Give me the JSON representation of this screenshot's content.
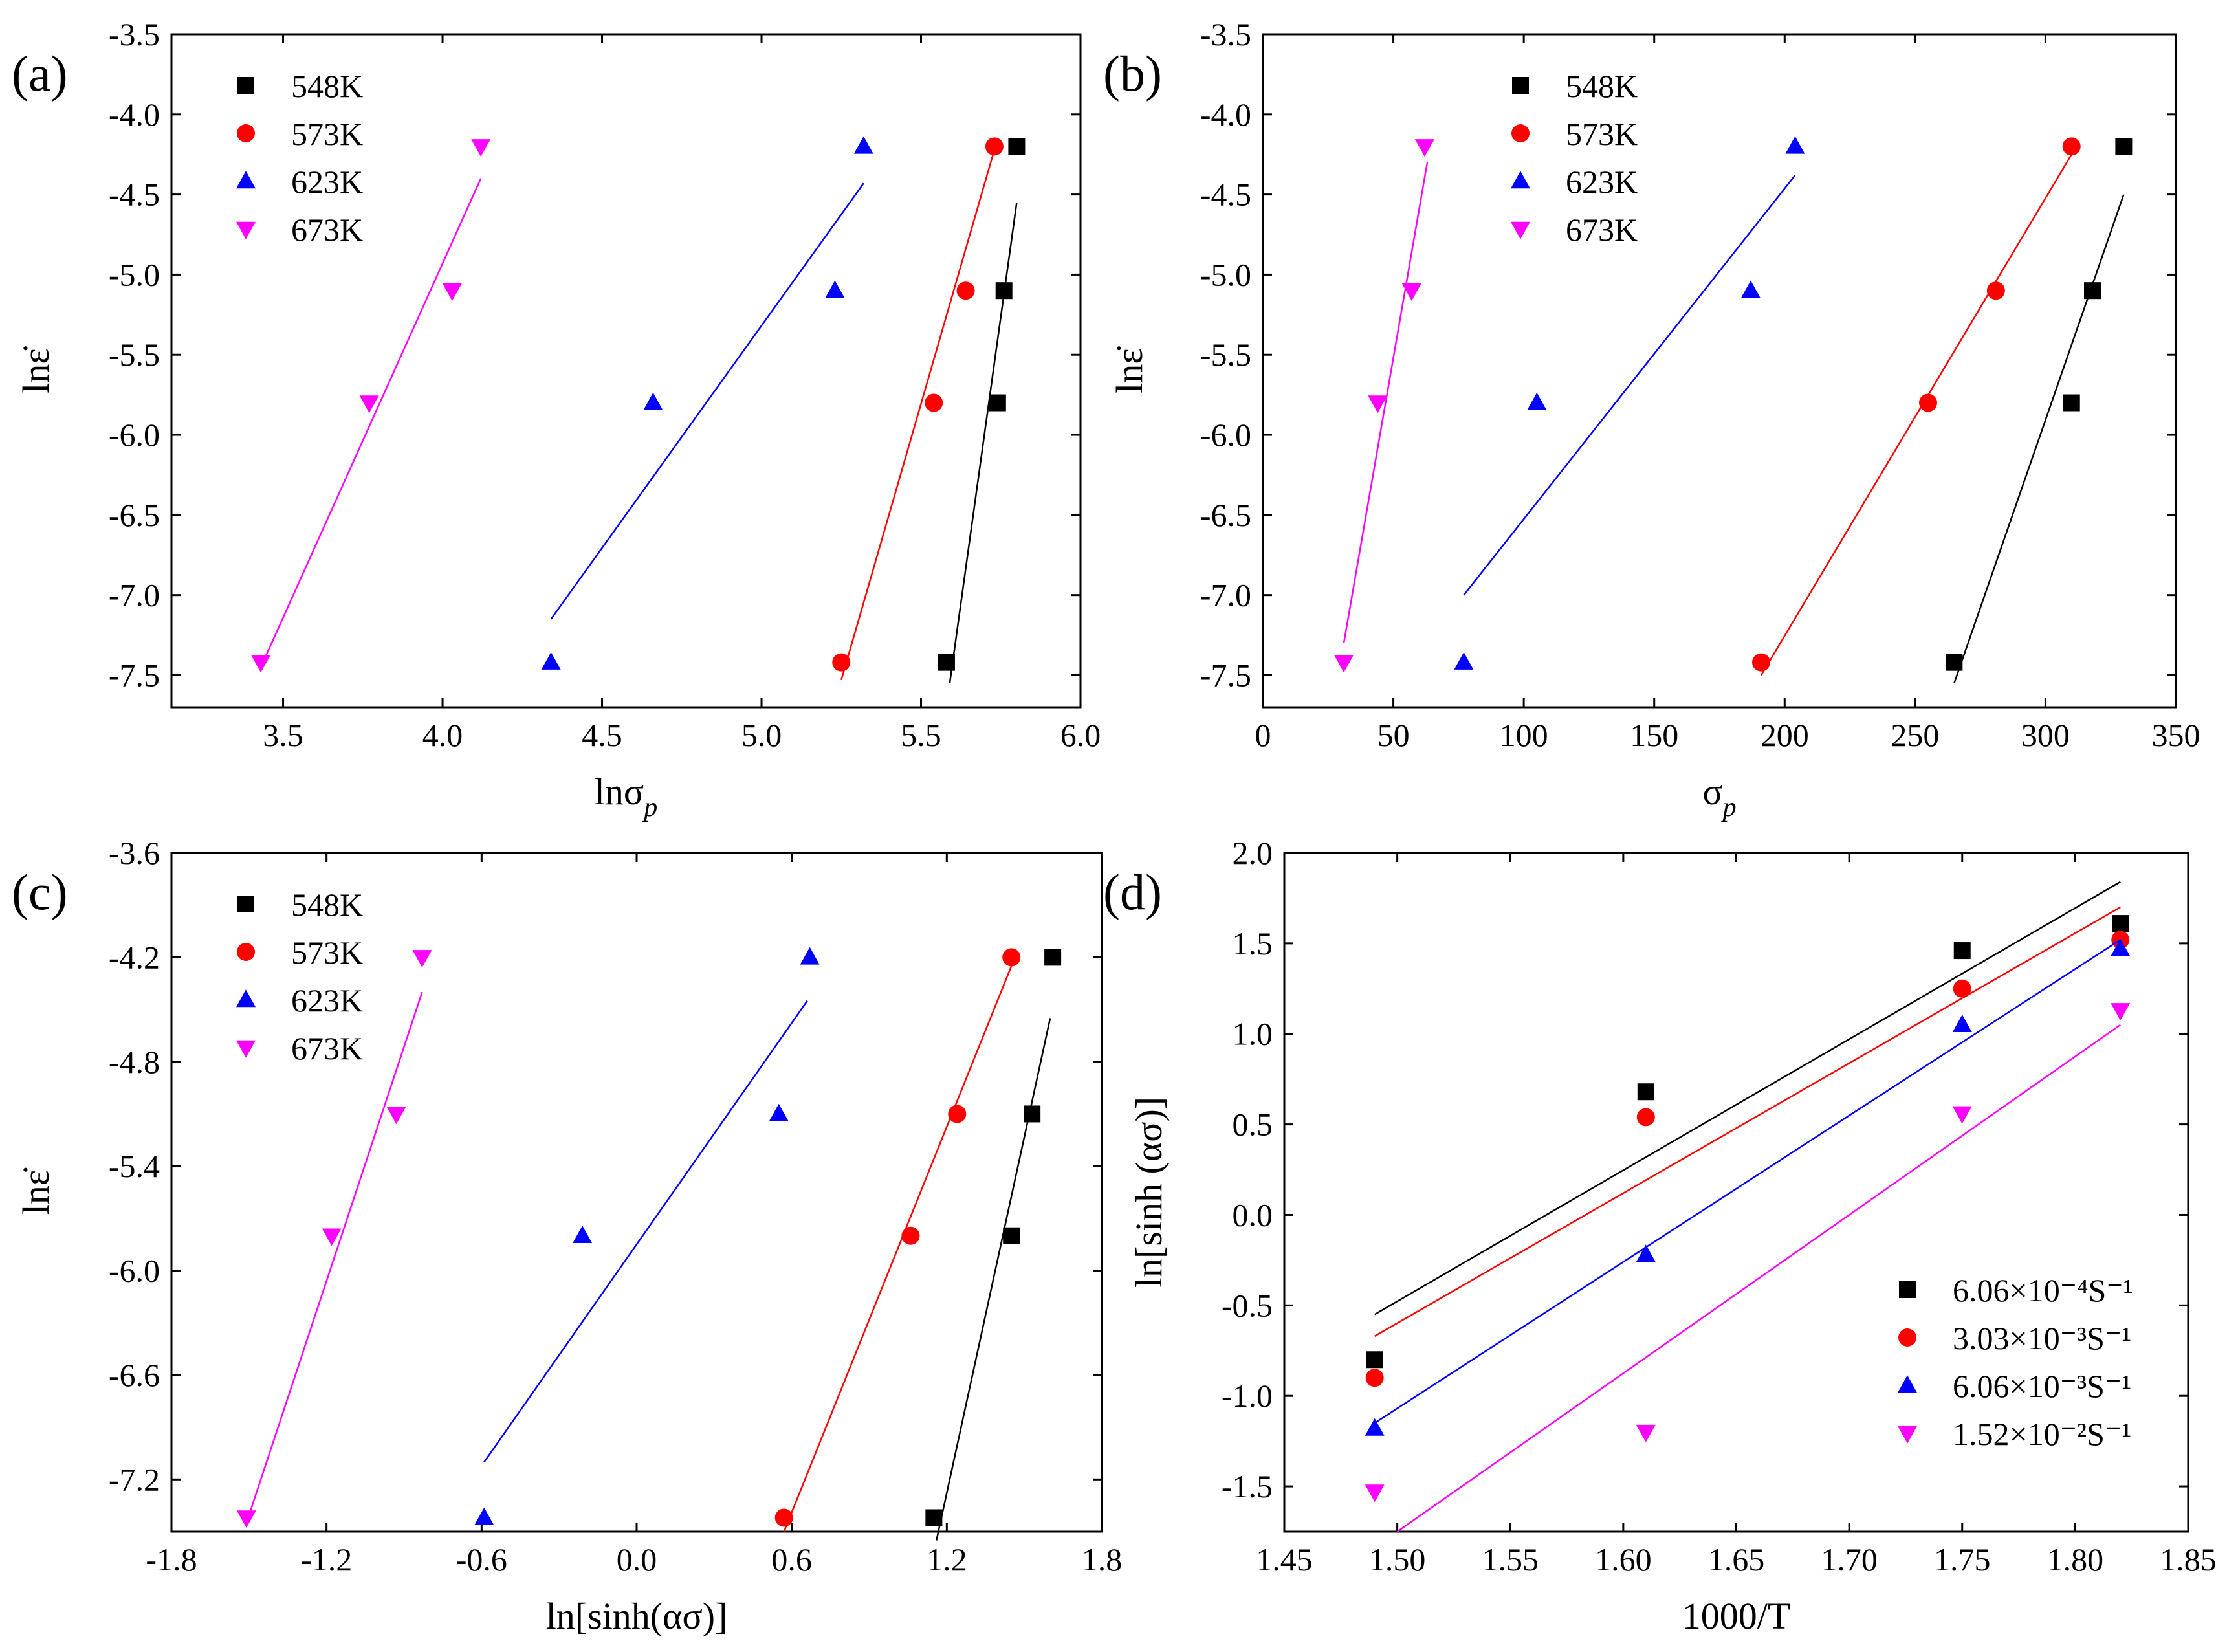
{
  "chart_data": [
    {
      "id": "a",
      "type": "scatter",
      "panel_label": "(a)",
      "xlabel_main": "lnσ",
      "xlabel_sub": "p",
      "ylabel": "lnε̇",
      "xlim": [
        3.15,
        6.0
      ],
      "ylim": [
        -7.7,
        -3.5
      ],
      "xticks": [
        3.5,
        4.0,
        4.5,
        5.0,
        5.5,
        6.0
      ],
      "yticks": [
        -3.5,
        -4.0,
        -4.5,
        -5.0,
        -5.5,
        -6.0,
        -6.5,
        -7.0,
        -7.5
      ],
      "tick_decimals_x": 1,
      "tick_decimals_y": 1,
      "legend_position": "top-left",
      "series": [
        {
          "name": "548K",
          "marker": "square",
          "color": "#000000",
          "x": [
            5.58,
            5.74,
            5.76,
            5.8
          ],
          "y": [
            -7.42,
            -5.8,
            -5.1,
            -4.2
          ],
          "fit": {
            "x": [
              5.59,
              5.8
            ],
            "y": [
              -7.55,
              -4.55
            ]
          }
        },
        {
          "name": "573K",
          "marker": "circle",
          "color": "#ff0000",
          "x": [
            5.25,
            5.54,
            5.64,
            5.73
          ],
          "y": [
            -7.42,
            -5.8,
            -5.1,
            -4.2
          ],
          "fit": {
            "x": [
              5.25,
              5.73
            ],
            "y": [
              -7.53,
              -4.22
            ]
          }
        },
        {
          "name": "623K",
          "marker": "triangle-up",
          "color": "#0000ff",
          "x": [
            4.34,
            4.66,
            5.23,
            5.32
          ],
          "y": [
            -7.42,
            -5.8,
            -5.1,
            -4.2
          ],
          "fit": {
            "x": [
              4.34,
              5.32
            ],
            "y": [
              -7.15,
              -4.43
            ]
          }
        },
        {
          "name": "673K",
          "marker": "triangle-down",
          "color": "#ff00ff",
          "x": [
            3.43,
            3.77,
            4.03,
            4.12
          ],
          "y": [
            -7.42,
            -5.8,
            -5.1,
            -4.2
          ],
          "fit": {
            "x": [
              3.43,
              4.12
            ],
            "y": [
              -7.45,
              -4.4
            ]
          }
        }
      ]
    },
    {
      "id": "b",
      "type": "scatter",
      "panel_label": "(b)",
      "xlabel_main": "σ",
      "xlabel_sub": "p",
      "ylabel": "lnε̇",
      "xlim": [
        0,
        350
      ],
      "ylim": [
        -7.7,
        -3.5
      ],
      "xticks": [
        0,
        50,
        100,
        150,
        200,
        250,
        300,
        350
      ],
      "yticks": [
        -3.5,
        -4.0,
        -4.5,
        -5.0,
        -5.5,
        -6.0,
        -6.5,
        -7.0,
        -7.5
      ],
      "tick_decimals_x": 0,
      "tick_decimals_y": 1,
      "legend_position": "top-left",
      "series": [
        {
          "name": "548K",
          "marker": "square",
          "color": "#000000",
          "x": [
            265,
            310,
            318,
            330
          ],
          "y": [
            -7.42,
            -5.8,
            -5.1,
            -4.2
          ],
          "fit": {
            "x": [
              265,
              330
            ],
            "y": [
              -7.55,
              -4.5
            ]
          }
        },
        {
          "name": "573K",
          "marker": "circle",
          "color": "#ff0000",
          "x": [
            191,
            255,
            281,
            310
          ],
          "y": [
            -7.42,
            -5.8,
            -5.1,
            -4.2
          ],
          "fit": {
            "x": [
              191,
              310
            ],
            "y": [
              -7.5,
              -4.25
            ]
          }
        },
        {
          "name": "623K",
          "marker": "triangle-up",
          "color": "#0000ff",
          "x": [
            77,
            105,
            187,
            204
          ],
          "y": [
            -7.42,
            -5.8,
            -5.1,
            -4.2
          ],
          "fit": {
            "x": [
              77,
              204
            ],
            "y": [
              -7.0,
              -4.38
            ]
          }
        },
        {
          "name": "673K",
          "marker": "triangle-down",
          "color": "#ff00ff",
          "x": [
            31,
            44,
            57,
            62
          ],
          "y": [
            -7.42,
            -5.8,
            -5.1,
            -4.2
          ],
          "fit": {
            "x": [
              31,
              63
            ],
            "y": [
              -7.3,
              -4.3
            ]
          }
        }
      ]
    },
    {
      "id": "c",
      "type": "scatter",
      "panel_label": "(c)",
      "xlabel_main": "ln[sinh(ασ)]",
      "xlabel_sub": "",
      "ylabel": "lnε̇",
      "xlim": [
        -1.8,
        1.8
      ],
      "ylim": [
        -7.5,
        -3.6
      ],
      "xticks": [
        -1.8,
        -1.2,
        -0.6,
        0.0,
        0.6,
        1.2,
        1.8
      ],
      "yticks": [
        -3.6,
        -4.2,
        -4.8,
        -5.4,
        -6.0,
        -6.6,
        -7.2
      ],
      "tick_decimals_x": 1,
      "tick_decimals_y": 1,
      "legend_position": "top-left",
      "series": [
        {
          "name": "548K",
          "marker": "square",
          "color": "#000000",
          "x": [
            1.15,
            1.45,
            1.53,
            1.61
          ],
          "y": [
            -7.42,
            -5.8,
            -5.1,
            -4.2
          ],
          "fit": {
            "x": [
              1.16,
              1.6
            ],
            "y": [
              -7.55,
              -4.55
            ]
          }
        },
        {
          "name": "573K",
          "marker": "circle",
          "color": "#ff0000",
          "x": [
            0.57,
            1.06,
            1.24,
            1.45
          ],
          "y": [
            -7.42,
            -5.8,
            -5.1,
            -4.2
          ],
          "fit": {
            "x": [
              0.57,
              1.45
            ],
            "y": [
              -7.5,
              -4.25
            ]
          }
        },
        {
          "name": "623K",
          "marker": "triangle-up",
          "color": "#0000ff",
          "x": [
            -0.59,
            -0.21,
            0.55,
            0.67
          ],
          "y": [
            -7.42,
            -5.8,
            -5.1,
            -4.2
          ],
          "fit": {
            "x": [
              -0.59,
              0.66
            ],
            "y": [
              -7.1,
              -4.45
            ]
          }
        },
        {
          "name": "673K",
          "marker": "triangle-down",
          "color": "#ff00ff",
          "x": [
            -1.51,
            -1.18,
            -0.93,
            -0.83
          ],
          "y": [
            -7.42,
            -5.8,
            -5.1,
            -4.2
          ],
          "fit": {
            "x": [
              -1.51,
              -0.83
            ],
            "y": [
              -7.45,
              -4.4
            ]
          }
        }
      ]
    },
    {
      "id": "d",
      "type": "scatter",
      "panel_label": "(d)",
      "xlabel_main": "1000/T",
      "xlabel_sub": "",
      "ylabel": "ln[sinh (ασ)]",
      "xlim": [
        1.45,
        1.85
      ],
      "ylim": [
        -1.75,
        2.0
      ],
      "xticks": [
        1.45,
        1.5,
        1.55,
        1.6,
        1.65,
        1.7,
        1.75,
        1.8,
        1.85
      ],
      "yticks": [
        2.0,
        1.5,
        1.0,
        0.5,
        0.0,
        -0.5,
        -1.0,
        -1.5
      ],
      "tick_decimals_x": 2,
      "tick_decimals_y": 1,
      "legend_position": "bottom-right",
      "series": [
        {
          "name": "6.06×10⁻⁴S⁻¹",
          "marker": "square",
          "color": "#000000",
          "x": [
            1.49,
            1.61,
            1.75,
            1.82
          ],
          "y": [
            -0.8,
            0.68,
            1.46,
            1.61
          ],
          "fit": {
            "x": [
              1.49,
              1.82
            ],
            "y": [
              -0.55,
              1.84
            ]
          }
        },
        {
          "name": "3.03×10⁻³S⁻¹",
          "marker": "circle",
          "color": "#ff0000",
          "x": [
            1.49,
            1.61,
            1.75,
            1.82
          ],
          "y": [
            -0.9,
            0.54,
            1.25,
            1.52
          ],
          "fit": {
            "x": [
              1.49,
              1.82
            ],
            "y": [
              -0.67,
              1.7
            ]
          }
        },
        {
          "name": "6.06×10⁻³S⁻¹",
          "marker": "triangle-up",
          "color": "#0000ff",
          "x": [
            1.49,
            1.61,
            1.75,
            1.82
          ],
          "y": [
            -1.18,
            -0.22,
            1.05,
            1.47
          ],
          "fit": {
            "x": [
              1.49,
              1.82
            ],
            "y": [
              -1.15,
              1.52
            ]
          }
        },
        {
          "name": "1.52×10⁻²S⁻¹",
          "marker": "triangle-down",
          "color": "#ff00ff",
          "x": [
            1.49,
            1.61,
            1.75,
            1.82
          ],
          "y": [
            -1.53,
            -1.2,
            0.56,
            1.13
          ],
          "fit": {
            "x": [
              1.5,
              1.82
            ],
            "y": [
              -1.75,
              1.05
            ]
          }
        }
      ]
    }
  ]
}
